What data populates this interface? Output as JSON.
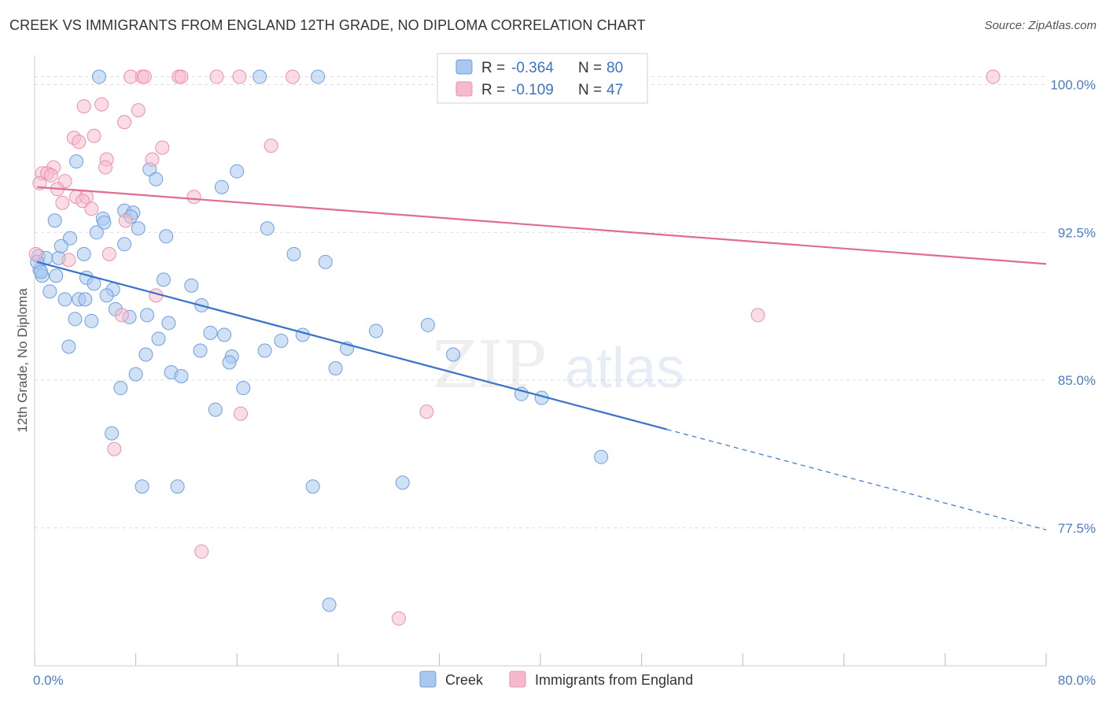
{
  "header": {
    "title": "CREEK VS IMMIGRANTS FROM ENGLAND 12TH GRADE, NO DIPLOMA CORRELATION CHART",
    "source": "Source: ZipAtlas.com"
  },
  "watermark": {
    "zip": "ZIP",
    "atlas": "atlas"
  },
  "legend": {
    "creek": {
      "r_label": "R =",
      "r_value": "-0.364",
      "n_label": "N =",
      "n_value": "80"
    },
    "england": {
      "r_label": "R =",
      "r_value": "-0.109",
      "n_label": "N =",
      "n_value": "47"
    }
  },
  "bottom_legend": {
    "creek": "Creek",
    "england": "Immigrants from England"
  },
  "colors": {
    "creek_fill": "#aac8ef",
    "creek_stroke": "#6f9fe0",
    "creek_line": "#3a74c8",
    "england_fill": "#f6b9cc",
    "england_stroke": "#ec8fae",
    "england_line": "#e06c93",
    "grid": "#dddddd",
    "axis_tick_label": "#4a7cc9"
  },
  "chart_data": {
    "type": "scatter",
    "title": "CREEK VS IMMIGRANTS FROM ENGLAND 12TH GRADE, NO DIPLOMA CORRELATION CHART",
    "xlabel": "",
    "ylabel": "12th Grade, No Diploma",
    "xlim": [
      0,
      80
    ],
    "ylim": [
      70.5,
      101.5
    ],
    "x_tick_labels": [
      "0.0%",
      "80.0%"
    ],
    "y_ticks": [
      100.0,
      92.5,
      85.0,
      77.5
    ],
    "y_tick_labels": [
      "100.0%",
      "92.5%",
      "85.0%",
      "77.5%"
    ],
    "grid": true,
    "legend_position": "top-center",
    "series": [
      {
        "name": "Creek",
        "r": -0.364,
        "n": 80,
        "trend": {
          "x0": 0.2,
          "y0": 91.0,
          "x1": 50.0,
          "y1": 82.5,
          "dashed_to_x": 80.0,
          "dashed_to_y": 77.4
        },
        "points": [
          [
            5.1,
            100.4
          ],
          [
            17.8,
            100.4
          ],
          [
            22.4,
            100.4
          ],
          [
            3.3,
            96.1
          ],
          [
            9.1,
            95.7
          ],
          [
            16.0,
            95.6
          ],
          [
            9.6,
            95.2
          ],
          [
            14.8,
            94.8
          ],
          [
            1.6,
            93.1
          ],
          [
            5.4,
            93.2
          ],
          [
            7.1,
            93.6
          ],
          [
            7.8,
            93.5
          ],
          [
            7.6,
            93.3
          ],
          [
            5.5,
            93.0
          ],
          [
            8.2,
            92.7
          ],
          [
            18.4,
            92.7
          ],
          [
            2.8,
            92.2
          ],
          [
            10.4,
            92.3
          ],
          [
            4.9,
            92.5
          ],
          [
            0.3,
            91.3
          ],
          [
            0.9,
            91.2
          ],
          [
            1.9,
            91.2
          ],
          [
            7.1,
            91.9
          ],
          [
            2.1,
            91.8
          ],
          [
            3.9,
            91.4
          ],
          [
            20.5,
            91.4
          ],
          [
            23.0,
            91.0
          ],
          [
            0.4,
            90.6
          ],
          [
            0.6,
            90.3
          ],
          [
            1.7,
            90.3
          ],
          [
            4.1,
            90.2
          ],
          [
            10.2,
            90.1
          ],
          [
            12.4,
            89.8
          ],
          [
            4.7,
            89.9
          ],
          [
            6.2,
            89.6
          ],
          [
            1.2,
            89.5
          ],
          [
            2.4,
            89.1
          ],
          [
            3.5,
            89.1
          ],
          [
            4.0,
            89.1
          ],
          [
            5.7,
            89.3
          ],
          [
            13.2,
            88.8
          ],
          [
            6.4,
            88.6
          ],
          [
            7.5,
            88.2
          ],
          [
            8.9,
            88.3
          ],
          [
            3.2,
            88.1
          ],
          [
            4.5,
            88.0
          ],
          [
            10.6,
            87.9
          ],
          [
            13.9,
            87.4
          ],
          [
            15.0,
            87.3
          ],
          [
            27.0,
            87.5
          ],
          [
            31.1,
            87.8
          ],
          [
            9.8,
            87.1
          ],
          [
            21.2,
            87.3
          ],
          [
            19.5,
            87.0
          ],
          [
            2.7,
            86.7
          ],
          [
            13.1,
            86.5
          ],
          [
            18.2,
            86.5
          ],
          [
            24.7,
            86.6
          ],
          [
            8.8,
            86.3
          ],
          [
            15.6,
            86.2
          ],
          [
            15.4,
            85.9
          ],
          [
            33.1,
            86.3
          ],
          [
            23.8,
            85.6
          ],
          [
            8.0,
            85.3
          ],
          [
            10.8,
            85.4
          ],
          [
            11.6,
            85.2
          ],
          [
            6.8,
            84.6
          ],
          [
            16.5,
            84.6
          ],
          [
            38.5,
            84.3
          ],
          [
            40.1,
            84.1
          ],
          [
            14.3,
            83.5
          ],
          [
            6.1,
            82.3
          ],
          [
            44.8,
            81.1
          ],
          [
            8.5,
            79.6
          ],
          [
            11.3,
            79.6
          ],
          [
            22.0,
            79.6
          ],
          [
            29.1,
            79.8
          ],
          [
            23.3,
            73.6
          ],
          [
            0.2,
            91.0
          ],
          [
            0.5,
            90.5
          ]
        ]
      },
      {
        "name": "Immigrants from England",
        "r": -0.109,
        "n": 47,
        "trend": {
          "x0": 0.2,
          "y0": 94.8,
          "x1": 80.0,
          "y1": 90.9
        },
        "points": [
          [
            7.6,
            100.4
          ],
          [
            8.5,
            100.4
          ],
          [
            8.7,
            100.4
          ],
          [
            11.4,
            100.4
          ],
          [
            11.6,
            100.4
          ],
          [
            14.4,
            100.4
          ],
          [
            16.2,
            100.4
          ],
          [
            20.4,
            100.4
          ],
          [
            32.5,
            100.4
          ],
          [
            75.8,
            100.4
          ],
          [
            5.3,
            99.0
          ],
          [
            3.9,
            98.9
          ],
          [
            8.2,
            98.7
          ],
          [
            7.1,
            98.1
          ],
          [
            4.7,
            97.4
          ],
          [
            3.1,
            97.3
          ],
          [
            3.5,
            97.1
          ],
          [
            18.7,
            96.9
          ],
          [
            10.1,
            96.8
          ],
          [
            5.7,
            96.2
          ],
          [
            9.3,
            96.2
          ],
          [
            1.5,
            95.8
          ],
          [
            5.6,
            95.8
          ],
          [
            0.6,
            95.5
          ],
          [
            1.0,
            95.5
          ],
          [
            1.3,
            95.4
          ],
          [
            2.4,
            95.1
          ],
          [
            0.4,
            95.0
          ],
          [
            1.8,
            94.7
          ],
          [
            3.3,
            94.3
          ],
          [
            4.1,
            94.3
          ],
          [
            12.6,
            94.3
          ],
          [
            3.8,
            94.1
          ],
          [
            2.2,
            94.0
          ],
          [
            4.5,
            93.7
          ],
          [
            7.2,
            93.1
          ],
          [
            5.9,
            91.4
          ],
          [
            2.7,
            91.1
          ],
          [
            0.1,
            91.4
          ],
          [
            9.6,
            89.3
          ],
          [
            6.9,
            88.3
          ],
          [
            57.2,
            88.3
          ],
          [
            16.3,
            83.3
          ],
          [
            31.0,
            83.4
          ],
          [
            6.3,
            81.5
          ],
          [
            13.2,
            76.3
          ],
          [
            28.8,
            72.9
          ]
        ]
      }
    ]
  }
}
